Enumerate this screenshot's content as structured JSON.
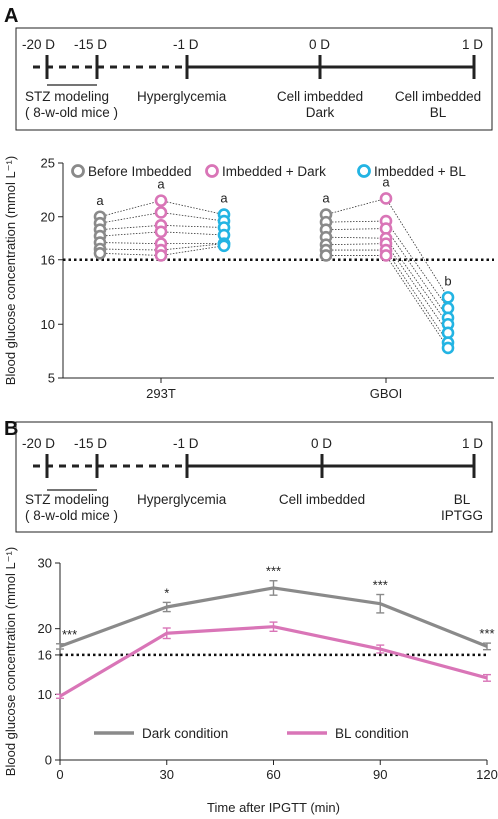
{
  "panels": {
    "A": {
      "letter": "A",
      "timeline": {
        "ticks": [
          "-20 D",
          "-15 D",
          "-1 D",
          "0 D",
          "1 D"
        ],
        "stz_label": "STZ modeling",
        "mice_label": "( 8-w-old mice )",
        "hyper_label": "Hyperglycemia",
        "event1_line1": "Cell imbedded",
        "event1_line2": "Dark",
        "event2_line1": "Cell imbedded",
        "event2_line2": "BL"
      }
    },
    "B": {
      "letter": "B",
      "timeline": {
        "ticks": [
          "-20 D",
          "-15 D",
          "-1 D",
          "0 D",
          "1 D"
        ],
        "stz_label": "STZ modeling",
        "mice_label": "( 8-w-old mice )",
        "hyper_label": "Hyperglycemia",
        "event1_line1": "Cell imbedded",
        "event2_line1": "BL",
        "event2_line2": "IPTGG"
      }
    }
  },
  "colors": {
    "gray": "#8a8a8a",
    "pink": "#d975b7",
    "cyan": "#23b4e3",
    "line": "#222222"
  },
  "chart_data": [
    {
      "type": "scatter",
      "title": "",
      "ylabel": "Blood glucose concentration (mmol L⁻¹)",
      "ylim": [
        5,
        25
      ],
      "yticks": [
        5,
        10,
        16,
        20,
        25
      ],
      "threshold": 16,
      "groups": [
        "293T",
        "GBOI"
      ],
      "legend": {
        "position": "top",
        "entries": [
          "Before Imbedded",
          "Imbedded + Dark",
          "Imbedded + BL"
        ]
      },
      "series": [
        {
          "name": "Before Imbedded",
          "color": "#8a8a8a",
          "groups": {
            "293T": [
              20.0,
              19.4,
              18.8,
              18.2,
              17.6,
              17.0,
              16.6
            ],
            "GBOI": [
              20.2,
              19.5,
              18.8,
              18.1,
              17.4,
              16.9,
              16.4
            ]
          }
        },
        {
          "name": "Imbedded + Dark",
          "color": "#d975b7",
          "groups": {
            "293T": [
              21.5,
              20.4,
              19.2,
              18.6,
              17.5,
              16.9,
              16.4
            ],
            "GBOI": [
              21.7,
              19.6,
              18.9,
              18.0,
              17.5,
              16.9,
              16.4
            ]
          }
        },
        {
          "name": "Imbedded + BL",
          "color": "#23b4e3",
          "groups": {
            "293T": [
              20.2,
              19.6,
              19.0,
              18.3,
              17.5,
              17.5,
              17.3
            ],
            "GBOI": [
              12.5,
              11.5,
              10.6,
              10.0,
              9.2,
              8.3,
              7.8
            ]
          }
        }
      ],
      "significance": {
        "293T": [
          "a",
          "a",
          "a"
        ],
        "GBOI": [
          "a",
          "a",
          "b"
        ]
      }
    },
    {
      "type": "line",
      "title": "",
      "xlabel": "Time after IPGTT (min)",
      "ylabel": "Blood glucose concentration (mmol L⁻¹)",
      "x": [
        0,
        30,
        60,
        90,
        120
      ],
      "xlim": [
        0,
        120
      ],
      "xticks": [
        0,
        30,
        60,
        90,
        120
      ],
      "ylim": [
        0,
        30
      ],
      "yticks": [
        0,
        10,
        16,
        20,
        30
      ],
      "threshold": 16,
      "legend": {
        "position": "bottom",
        "entries": [
          "Dark condition",
          "BL condition"
        ]
      },
      "series": [
        {
          "name": "Dark condition",
          "color": "#8a8a8a",
          "values": [
            17.3,
            23.3,
            26.2,
            23.8,
            17.3
          ],
          "errors": [
            0.4,
            0.7,
            1.1,
            1.4,
            0.5
          ]
        },
        {
          "name": "BL condition",
          "color": "#d975b7",
          "values": [
            9.7,
            19.3,
            20.3,
            16.9,
            12.5
          ],
          "errors": [
            0.3,
            0.8,
            0.7,
            0.6,
            0.5
          ]
        }
      ],
      "annotations": [
        "***",
        "*",
        "***",
        "***",
        "***"
      ]
    }
  ]
}
